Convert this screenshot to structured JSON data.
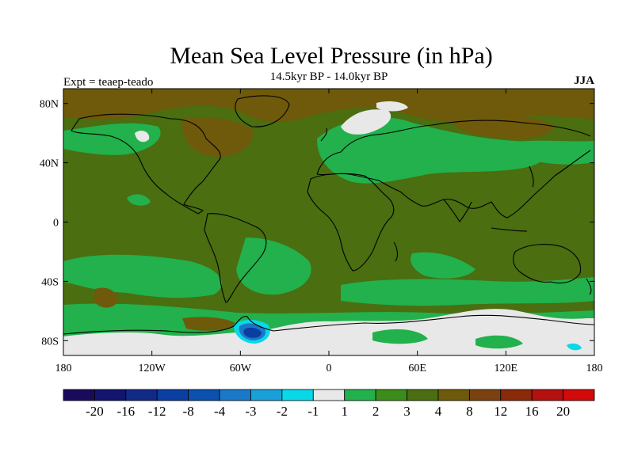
{
  "header": {
    "title": "Mean Sea Level Pressure (in hPa)",
    "experiment": "Expt = teaep-teado",
    "period": "14.5kyr BP - 14.0kyr BP",
    "season": "JJA"
  },
  "chart_data": {
    "type": "heatmap",
    "projection": "cylindrical-equidistant",
    "variable": "Mean Sea Level Pressure difference",
    "units": "hPa",
    "lon_range": [
      -180,
      180
    ],
    "lat_range": [
      -90,
      90
    ],
    "x_ticks": [
      "180",
      "120W",
      "60W",
      "0",
      "60E",
      "120E",
      "180"
    ],
    "x_tick_values": [
      -180,
      -120,
      -60,
      0,
      60,
      120,
      180
    ],
    "y_ticks": [
      "80N",
      "40N",
      "0",
      "40S",
      "80S"
    ],
    "y_tick_values": [
      80,
      40,
      0,
      -40,
      -80
    ],
    "colorbar": {
      "colors": [
        "#1a0a5a",
        "#12146e",
        "#102a86",
        "#0a3ea0",
        "#0c50b0",
        "#1a78c8",
        "#1aa0d8",
        "#0ad8e8",
        "#e8e8e8",
        "#22b14c",
        "#3c8c1c",
        "#4a6e10",
        "#6e5a0a",
        "#7a4210",
        "#8a2a0a",
        "#b41010",
        "#d20a0a"
      ],
      "labels": [
        "-20",
        "-16",
        "-12",
        "-8",
        "-4",
        "-3",
        "-2",
        "-1",
        "1",
        "2",
        "3",
        "4",
        "8",
        "12",
        "16",
        "20"
      ]
    },
    "field_summary": [
      {
        "level": "2 to 3",
        "region": "most of the globe (background)"
      },
      {
        "level": "1 to 2",
        "region": "North America, Eurasia, Southern Ocean bands, South Atlantic"
      },
      {
        "level": "3 to 4",
        "region": "tropical oceans and central Pacific"
      },
      {
        "level": "4 to 8",
        "region": "Arctic, parts of Siberia and Canada, Antarctic Peninsula area"
      },
      {
        "level": "-1 to 1",
        "region": "Antarctica, Scandinavia, Alaska"
      },
      {
        "level": "-4 to -1",
        "region": "Weddell Sea area"
      }
    ]
  }
}
